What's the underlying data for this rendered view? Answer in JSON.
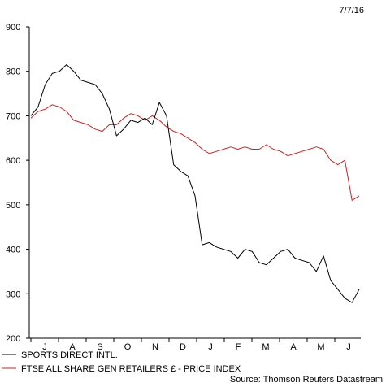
{
  "chart_data": {
    "type": "line",
    "date_label": "7/7/16",
    "source": "Source: Thomson Reuters Datastream",
    "ylim": [
      200,
      900
    ],
    "yticks": [
      200,
      300,
      400,
      500,
      600,
      700,
      800,
      900
    ],
    "month_labels": [
      "J",
      "A",
      "S",
      "O",
      "N",
      "D",
      "J",
      "F",
      "M",
      "A",
      "M",
      "J"
    ],
    "grid": false,
    "legend_position": "bottom-left",
    "series": [
      {
        "name": "SPORTS DIRECT INTL.",
        "color": "#000000",
        "points": [
          [
            0,
            700
          ],
          [
            1,
            720
          ],
          [
            2,
            770
          ],
          [
            3,
            795
          ],
          [
            4,
            800
          ],
          [
            5,
            815
          ],
          [
            6,
            800
          ],
          [
            7,
            780
          ],
          [
            8,
            775
          ],
          [
            9,
            770
          ],
          [
            10,
            750
          ],
          [
            11,
            715
          ],
          [
            12,
            655
          ],
          [
            13,
            670
          ],
          [
            14,
            690
          ],
          [
            15,
            685
          ],
          [
            16,
            695
          ],
          [
            17,
            680
          ],
          [
            18,
            730
          ],
          [
            19,
            700
          ],
          [
            20,
            590
          ],
          [
            21,
            575
          ],
          [
            22,
            565
          ],
          [
            23,
            520
          ],
          [
            24,
            410
          ],
          [
            25,
            415
          ],
          [
            26,
            405
          ],
          [
            27,
            400
          ],
          [
            28,
            395
          ],
          [
            29,
            380
          ],
          [
            30,
            400
          ],
          [
            31,
            395
          ],
          [
            32,
            370
          ],
          [
            33,
            365
          ],
          [
            34,
            380
          ],
          [
            35,
            395
          ],
          [
            36,
            400
          ],
          [
            37,
            380
          ],
          [
            38,
            375
          ],
          [
            39,
            370
          ],
          [
            40,
            350
          ],
          [
            41,
            385
          ],
          [
            42,
            330
          ],
          [
            43,
            310
          ],
          [
            44,
            290
          ],
          [
            45,
            280
          ],
          [
            46,
            310
          ]
        ]
      },
      {
        "name": "FTSE ALL SHARE GEN RETAILERS £ - PRICE INDEX",
        "color": "#cc2222",
        "points": [
          [
            0,
            695
          ],
          [
            1,
            710
          ],
          [
            2,
            715
          ],
          [
            3,
            725
          ],
          [
            4,
            720
          ],
          [
            5,
            710
          ],
          [
            6,
            690
          ],
          [
            7,
            685
          ],
          [
            8,
            680
          ],
          [
            9,
            670
          ],
          [
            10,
            665
          ],
          [
            11,
            680
          ],
          [
            12,
            680
          ],
          [
            13,
            695
          ],
          [
            14,
            705
          ],
          [
            15,
            700
          ],
          [
            16,
            690
          ],
          [
            17,
            700
          ],
          [
            18,
            690
          ],
          [
            19,
            675
          ],
          [
            20,
            665
          ],
          [
            21,
            660
          ],
          [
            22,
            650
          ],
          [
            23,
            640
          ],
          [
            24,
            625
          ],
          [
            25,
            615
          ],
          [
            26,
            620
          ],
          [
            27,
            625
          ],
          [
            28,
            630
          ],
          [
            29,
            625
          ],
          [
            30,
            630
          ],
          [
            31,
            625
          ],
          [
            32,
            625
          ],
          [
            33,
            635
          ],
          [
            34,
            625
          ],
          [
            35,
            620
          ],
          [
            36,
            610
          ],
          [
            37,
            615
          ],
          [
            38,
            620
          ],
          [
            39,
            625
          ],
          [
            40,
            630
          ],
          [
            41,
            625
          ],
          [
            42,
            600
          ],
          [
            43,
            590
          ],
          [
            44,
            600
          ],
          [
            45,
            510
          ],
          [
            46,
            520
          ]
        ]
      }
    ]
  }
}
